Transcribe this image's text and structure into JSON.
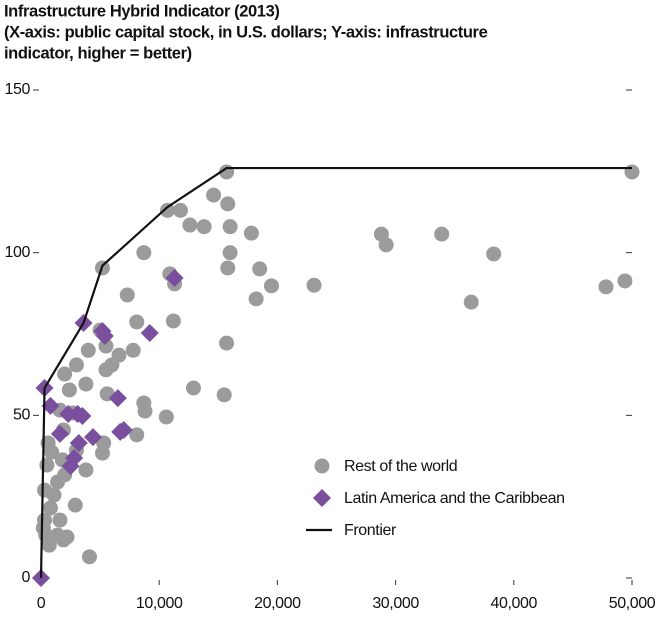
{
  "chart_data": {
    "type": "scatter",
    "title_lines": [
      "Infrastructure Hybrid Indicator (2013)",
      "(X-axis: public capital stock, in U.S. dollars; Y-axis: infrastructure",
      "indicator, higher = better)"
    ],
    "xlim": [
      0,
      50000
    ],
    "ylim": [
      0,
      150
    ],
    "xticks": [
      0,
      {
        "value": 10000,
        "label": "10,000"
      },
      {
        "value": 20000,
        "label": "20,000"
      },
      {
        "value": 30000,
        "label": "30,000"
      },
      {
        "value": 40000,
        "label": "40,000"
      },
      {
        "value": 50000,
        "label": "50,000"
      }
    ],
    "yticks": [
      0,
      50,
      100,
      150
    ],
    "legend": "lower right",
    "series": [
      {
        "name": "Rest of the world",
        "color": "#9b9b9b",
        "marker": "circle",
        "x": [
          50000,
          49400,
          47800,
          38300,
          36400,
          33900,
          29200,
          28800,
          23100,
          19500,
          18500,
          18200,
          17800,
          15700,
          15800,
          16000,
          16000,
          15800,
          15700,
          15500,
          14600,
          13800,
          12600,
          11800,
          10700,
          11300,
          10900,
          11200,
          10600,
          8700,
          8700,
          8800,
          8100,
          12900,
          8100,
          7800,
          7300,
          6600,
          5200,
          5000,
          5500,
          6000,
          5500,
          5600,
          4000,
          3800,
          3000,
          2400,
          2000,
          1600,
          2700,
          1900,
          3000,
          3800,
          2900,
          5300,
          5200,
          1800,
          2000,
          1400,
          1100,
          600,
          500,
          300,
          800,
          300,
          200,
          400,
          700,
          1400,
          1900,
          2200,
          4100,
          1600,
          900
        ],
        "y": [
          124.8,
          91.3,
          89.5,
          99.6,
          84.8,
          105.7,
          102.4,
          105.7,
          90,
          89.8,
          95,
          85.8,
          106,
          124.8,
          115,
          108,
          100,
          95.3,
          72.2,
          56.3,
          117.7,
          108,
          108.5,
          113,
          113,
          90.4,
          93.5,
          79,
          49.5,
          100,
          53.8,
          51.3,
          44,
          58.4,
          78.7,
          70,
          87,
          68.5,
          95.3,
          76.2,
          71.3,
          65.5,
          64,
          56.6,
          70,
          59.6,
          65.5,
          57.8,
          62.7,
          51.6,
          50.7,
          45.5,
          39.3,
          33.2,
          22.4,
          41.5,
          38.4,
          36.3,
          31.7,
          29.5,
          25.5,
          41.5,
          34.7,
          27,
          21.5,
          17.8,
          15.4,
          13.2,
          10.1,
          13.2,
          11.7,
          12.6,
          6.5,
          17.8,
          38.7
        ]
      },
      {
        "name": "Latin America and the Caribbean",
        "color": "#7a4f9d",
        "marker": "diamond",
        "x": [
          0,
          300,
          800,
          3600,
          5200,
          5400,
          9200,
          11300,
          6500,
          6700,
          7000,
          4400,
          3200,
          2300,
          3100,
          3500,
          2800,
          2500,
          1600
        ],
        "y": [
          0,
          58.4,
          52.9,
          78.4,
          75.9,
          74.4,
          75.3,
          92.2,
          55.3,
          44.9,
          45.5,
          43.3,
          41.5,
          50.4,
          50.4,
          49.8,
          36.9,
          34.4,
          44.3
        ]
      },
      {
        "name": "Frontier",
        "color": "#111111",
        "marker": "line",
        "x": [
          0,
          300,
          3600,
          5200,
          10700,
          15700,
          50000
        ],
        "y": [
          0,
          58.4,
          78.4,
          96,
          114,
          126,
          126
        ]
      }
    ]
  }
}
